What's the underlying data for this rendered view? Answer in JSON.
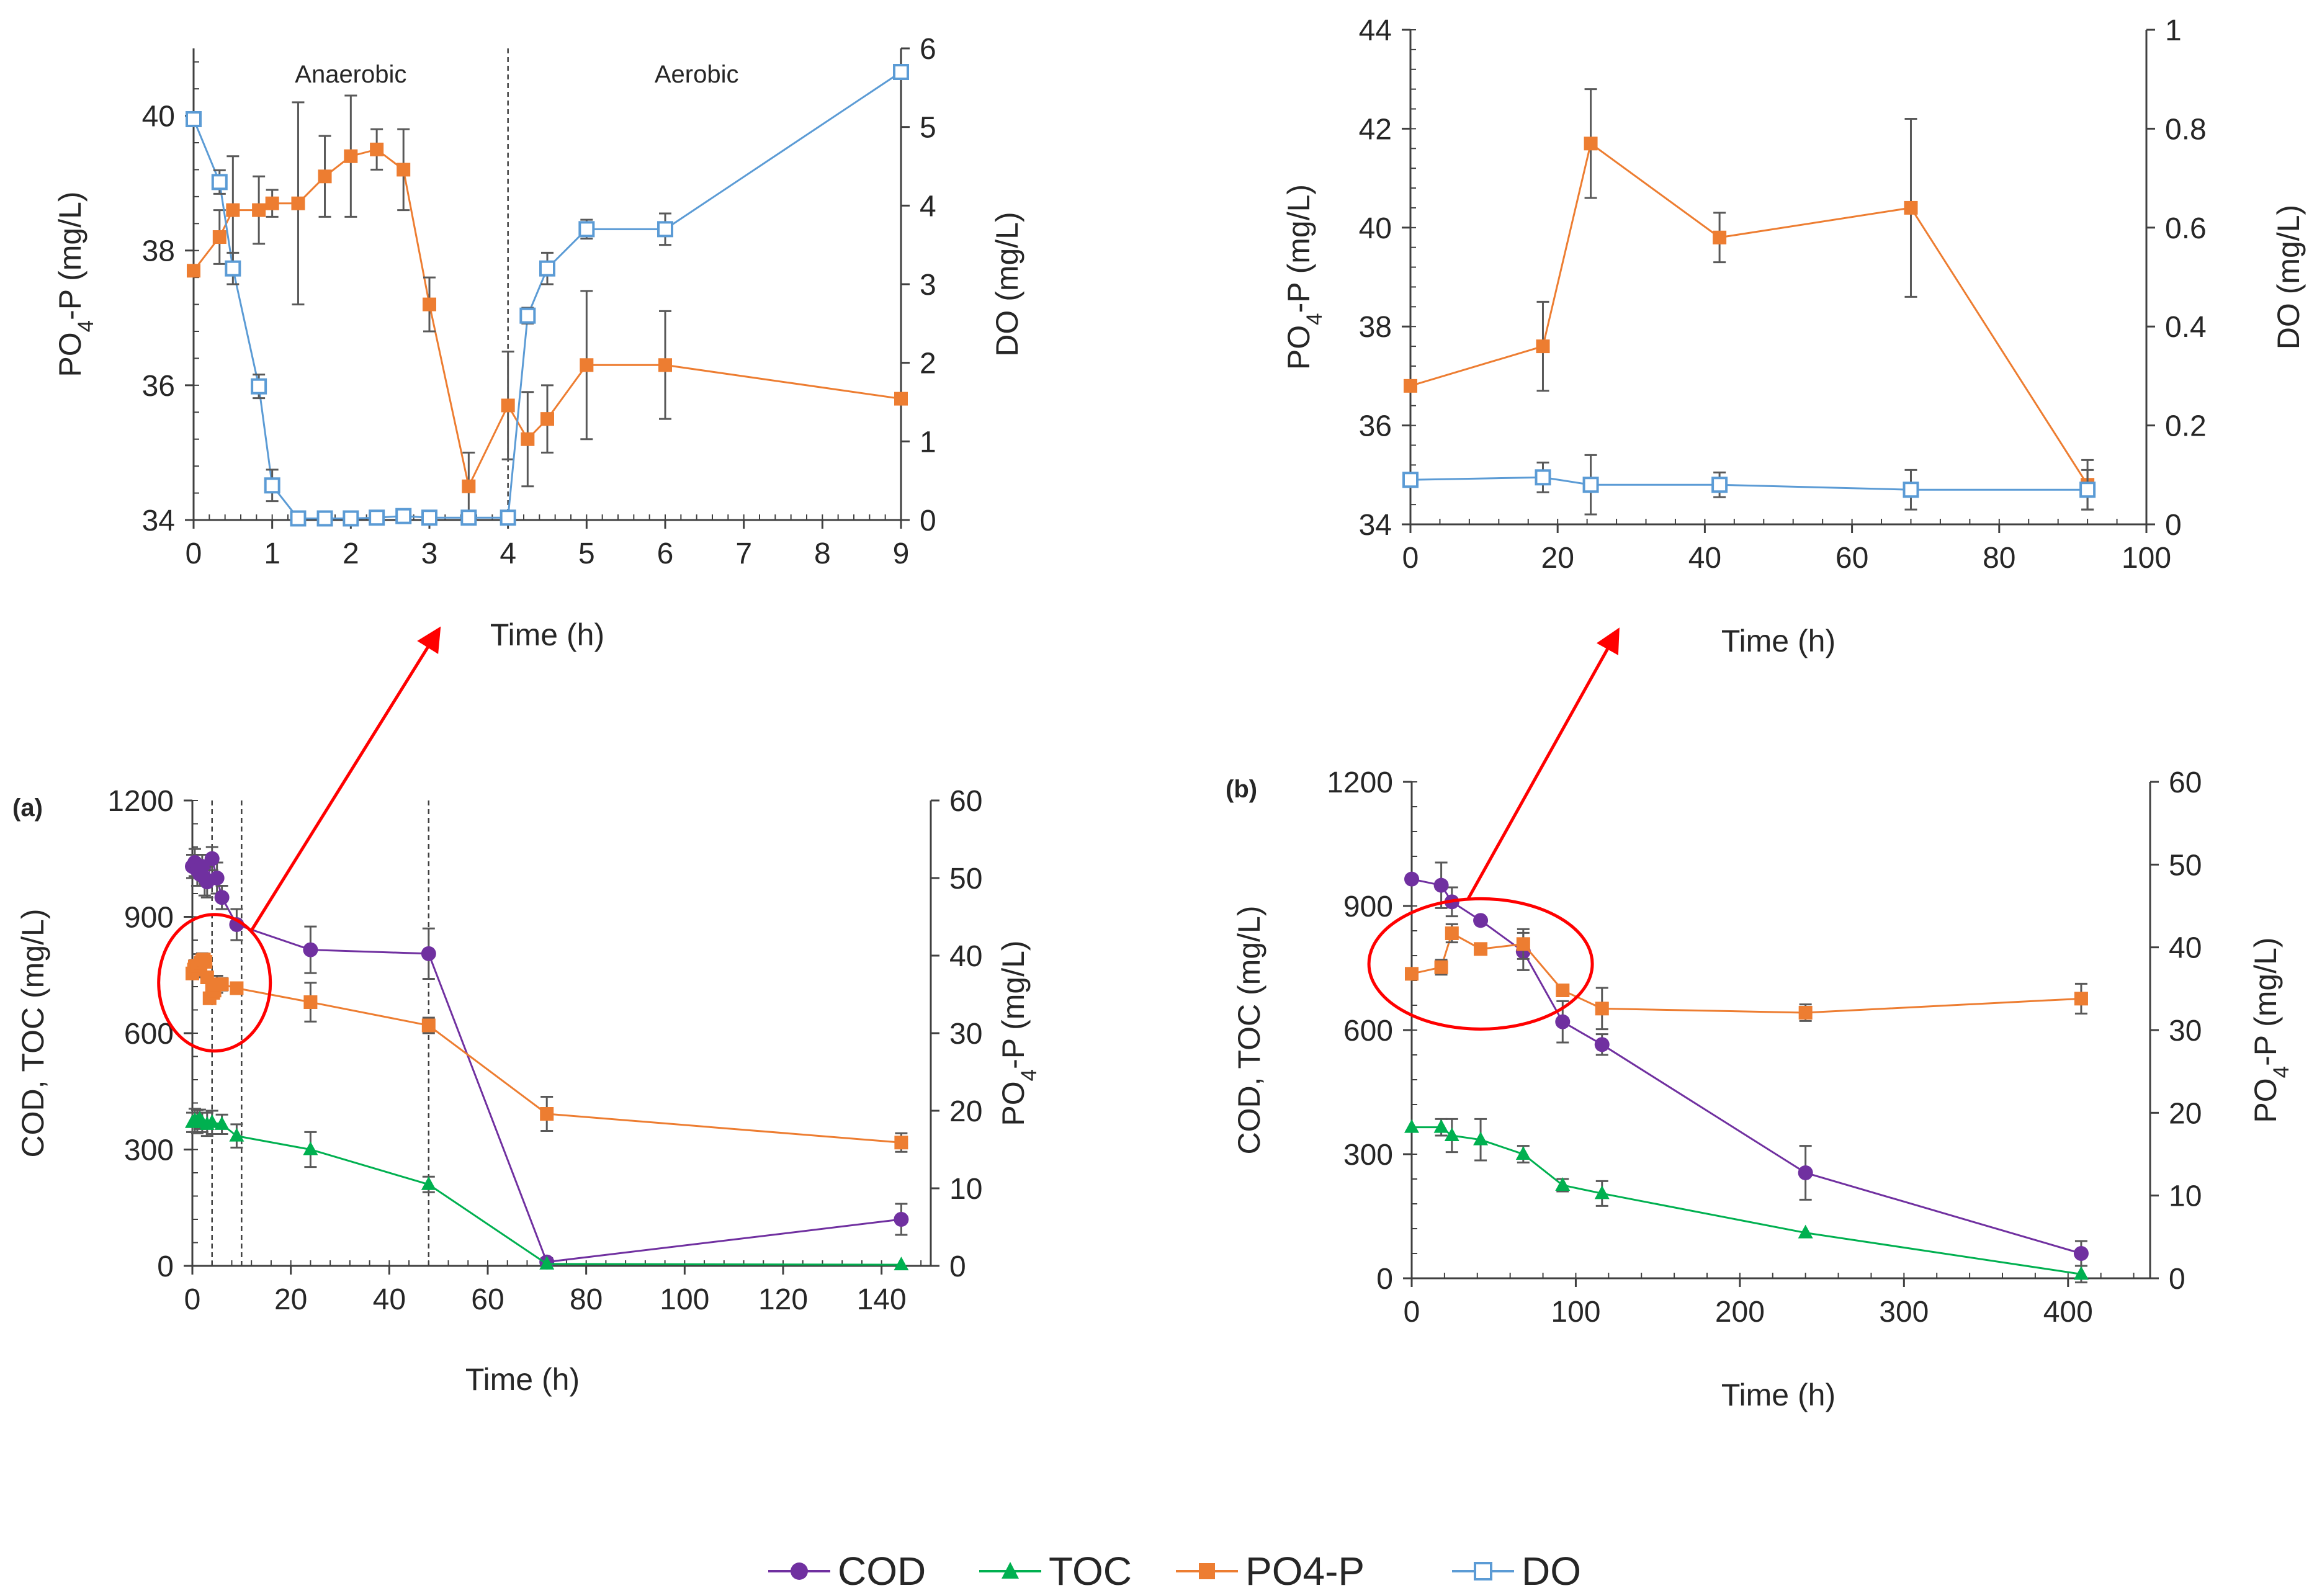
{
  "figure": {
    "legend": [
      "COD",
      "TOC",
      "PO4-P",
      "DO"
    ]
  },
  "colors": {
    "COD": "#7030a0",
    "TOC": "#00b050",
    "PO4-P": "#ed7d31",
    "DO": "#5b9bd5",
    "axis": "#404040",
    "arrow": "#ff0000",
    "circle": "#ff0000"
  },
  "chart_data": [
    {
      "id": "inset-a",
      "type": "line",
      "xlabel": "Time (h)",
      "ylabel": "PO4-P (mg/L)",
      "y2label": "DO (mg/L)",
      "xlim": [
        0,
        9
      ],
      "xticks": [
        0,
        1,
        2,
        3,
        4,
        5,
        6,
        7,
        8,
        9
      ],
      "ylim": [
        34,
        41
      ],
      "yticks": [
        34,
        36,
        38,
        40
      ],
      "y2lim": [
        0,
        6
      ],
      "y2ticks": [
        0,
        1,
        2,
        3,
        4,
        5,
        6
      ],
      "annotations": [
        "Anaerobic",
        "Aerobic"
      ],
      "vlines": [
        4
      ],
      "series": [
        {
          "name": "PO4-P",
          "axis": "left",
          "marker": "square",
          "x": [
            0,
            0.33,
            0.5,
            0.83,
            1,
            1.33,
            1.67,
            2,
            2.33,
            2.67,
            3,
            3.5,
            4,
            4.25,
            4.5,
            5,
            6,
            9
          ],
          "y": [
            37.7,
            38.2,
            38.6,
            38.6,
            38.7,
            38.7,
            39.1,
            39.4,
            39.5,
            39.2,
            37.2,
            34.5,
            35.7,
            35.2,
            35.5,
            36.3,
            36.3,
            35.8
          ],
          "err": [
            0,
            0.4,
            0.8,
            0.5,
            0.2,
            1.5,
            0.6,
            0.9,
            0.3,
            0.6,
            0.4,
            0.5,
            0.8,
            0.7,
            0.5,
            1.1,
            0.8,
            0
          ]
        },
        {
          "name": "DO",
          "axis": "right",
          "marker": "open-square",
          "x": [
            0,
            0.33,
            0.5,
            0.83,
            1,
            1.33,
            1.67,
            2,
            2.33,
            2.67,
            3,
            3.5,
            4,
            4.25,
            4.5,
            5,
            6,
            9
          ],
          "y": [
            5.1,
            4.3,
            3.2,
            1.7,
            0.44,
            0.02,
            0.02,
            0.02,
            0.03,
            0.05,
            0.03,
            0.03,
            0.03,
            2.6,
            3.2,
            3.7,
            3.7,
            5.7
          ],
          "err": [
            0,
            0.15,
            0.2,
            0.15,
            0.2,
            0,
            0,
            0,
            0,
            0,
            0,
            0,
            0,
            0.1,
            0.2,
            0.12,
            0.2,
            0
          ]
        }
      ]
    },
    {
      "id": "inset-b",
      "type": "line",
      "xlabel": "Time (h)",
      "ylabel": "PO4-P (mg/L)",
      "y2label": "DO (mg/L)",
      "xlim": [
        0,
        100
      ],
      "xticks": [
        0,
        20,
        40,
        60,
        80,
        100
      ],
      "ylim": [
        34,
        44
      ],
      "yticks": [
        34,
        36,
        38,
        40,
        42,
        44
      ],
      "y2lim": [
        0,
        1
      ],
      "y2ticks": [
        0,
        0.2,
        0.4,
        0.6,
        0.8,
        1
      ],
      "series": [
        {
          "name": "PO4-P",
          "axis": "left",
          "marker": "square",
          "x": [
            0,
            18,
            24.5,
            42,
            68,
            92
          ],
          "y": [
            36.8,
            37.6,
            41.7,
            39.8,
            40.4,
            34.8
          ],
          "err": [
            0,
            0.9,
            1.1,
            0.5,
            1.8,
            0.5
          ]
        },
        {
          "name": "DO",
          "axis": "right",
          "marker": "open-square",
          "x": [
            0,
            18,
            24.5,
            42,
            68,
            92
          ],
          "y": [
            0.09,
            0.095,
            0.08,
            0.08,
            0.07,
            0.07
          ],
          "err": [
            0,
            0.03,
            0.06,
            0.025,
            0.04,
            0.04
          ]
        }
      ]
    },
    {
      "id": "panel-a",
      "type": "line",
      "panel_label": "(a)",
      "xlabel": "Time (h)",
      "ylabel": "COD, TOC (mg/L)",
      "y2label": "PO4-P (mg/L)",
      "xlim": [
        0,
        150
      ],
      "xticks": [
        0,
        20,
        40,
        60,
        80,
        100,
        120,
        140
      ],
      "ylim": [
        0,
        1200
      ],
      "yticks": [
        0,
        300,
        600,
        900,
        1200
      ],
      "y2lim": [
        0,
        60
      ],
      "y2ticks": [
        0,
        10,
        20,
        30,
        40,
        50,
        60
      ],
      "vlines": [
        4,
        10,
        48
      ],
      "series": [
        {
          "name": "COD",
          "axis": "left",
          "marker": "circle",
          "x": [
            0,
            0.5,
            1,
            1.5,
            2,
            2.5,
            3,
            4,
            5,
            6,
            9,
            24,
            48,
            72,
            144
          ],
          "y": [
            1030,
            1040,
            1020,
            1010,
            1030,
            1000,
            990,
            1050,
            1000,
            950,
            880,
            815,
            805,
            10,
            120
          ],
          "err": [
            30,
            35,
            40,
            30,
            30,
            45,
            40,
            30,
            40,
            30,
            40,
            60,
            65,
            10,
            40
          ]
        },
        {
          "name": "TOC",
          "axis": "left",
          "marker": "triangle",
          "x": [
            0,
            0.5,
            1,
            1.5,
            2,
            3,
            4,
            6,
            9,
            24,
            48,
            72,
            144
          ],
          "y": [
            370,
            375,
            372,
            378,
            370,
            365,
            370,
            365,
            335,
            300,
            210,
            5,
            3
          ],
          "err": [
            25,
            30,
            30,
            25,
            25,
            30,
            30,
            25,
            30,
            45,
            20,
            0,
            0
          ]
        },
        {
          "name": "PO4-P",
          "axis": "right",
          "marker": "square",
          "x": [
            0,
            0.33,
            0.5,
            0.83,
            1,
            1.33,
            1.67,
            2,
            2.33,
            2.67,
            3,
            3.5,
            4,
            4.25,
            4.5,
            5,
            6,
            9,
            24,
            48,
            72,
            144
          ],
          "y": [
            37.7,
            38.2,
            38.6,
            38.6,
            38.7,
            38.7,
            39.1,
            39.4,
            39.5,
            39.2,
            37.2,
            34.5,
            35.7,
            35.2,
            35.5,
            36.3,
            36.3,
            35.8,
            34,
            31,
            19.6,
            15.9
          ],
          "err": [
            0,
            0.4,
            0.8,
            0.5,
            0.2,
            1.5,
            0.6,
            0.9,
            0.3,
            0.6,
            0.4,
            0.5,
            0.8,
            0.7,
            0.5,
            1.1,
            0.8,
            0.5,
            2.5,
            1,
            2.2,
            1.2
          ]
        }
      ]
    },
    {
      "id": "panel-b",
      "type": "line",
      "panel_label": "(b)",
      "xlabel": "Time (h)",
      "ylabel": "COD, TOC (mg/L)",
      "y2label": "PO4-P (mg/L)",
      "xlim": [
        0,
        450
      ],
      "xticks": [
        0,
        100,
        200,
        300,
        400
      ],
      "ylim": [
        0,
        1200
      ],
      "yticks": [
        0,
        300,
        600,
        900,
        1200
      ],
      "y2lim": [
        0,
        60
      ],
      "y2ticks": [
        0,
        10,
        20,
        30,
        40,
        50,
        60
      ],
      "series": [
        {
          "name": "COD",
          "axis": "left",
          "marker": "circle",
          "x": [
            0,
            18,
            24.5,
            42,
            68,
            92,
            116,
            240,
            408
          ],
          "y": [
            965,
            950,
            910,
            865,
            790,
            620,
            565,
            255,
            60
          ],
          "err": [
            0,
            55,
            35,
            0,
            45,
            50,
            25,
            65,
            30
          ]
        },
        {
          "name": "TOC",
          "axis": "left",
          "marker": "triangle",
          "x": [
            0,
            18,
            24.5,
            42,
            68,
            92,
            116,
            240,
            408
          ],
          "y": [
            365,
            365,
            345,
            335,
            300,
            225,
            205,
            110,
            10
          ],
          "err": [
            0,
            20,
            40,
            50,
            20,
            15,
            30,
            0,
            20
          ]
        },
        {
          "name": "PO4-P",
          "axis": "right",
          "marker": "square",
          "x": [
            0,
            18,
            24.5,
            42,
            68,
            92,
            116,
            240,
            408
          ],
          "y": [
            36.8,
            37.6,
            41.7,
            39.8,
            40.4,
            34.8,
            32.6,
            32.1,
            33.8
          ],
          "err": [
            0,
            0.9,
            1.1,
            0.5,
            1.8,
            0.5,
            2.5,
            1,
            1.8
          ]
        }
      ]
    }
  ]
}
